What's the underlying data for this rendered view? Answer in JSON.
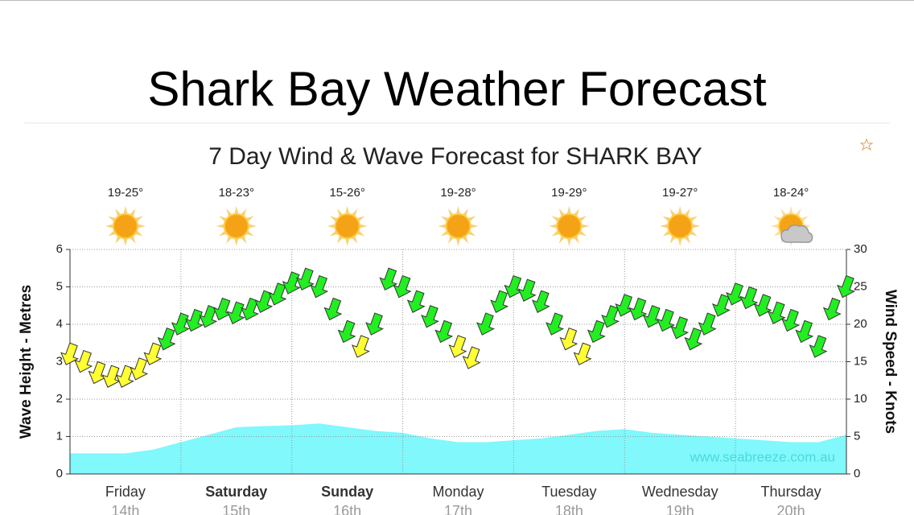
{
  "header": {
    "title": "Shark Bay Weather Forecast"
  },
  "chart_data": {
    "type": "wind-wave",
    "title": "7 Day Wind & Wave Forecast for SHARK BAY",
    "days": [
      {
        "name": "Friday",
        "date": "14th",
        "temp": "19-25°",
        "icon": "sun",
        "weekend": false
      },
      {
        "name": "Saturday",
        "date": "15th",
        "temp": "18-23°",
        "icon": "sun",
        "weekend": true
      },
      {
        "name": "Sunday",
        "date": "16th",
        "temp": "15-26°",
        "icon": "sun",
        "weekend": true
      },
      {
        "name": "Monday",
        "date": "17th",
        "temp": "19-28°",
        "icon": "sun",
        "weekend": false
      },
      {
        "name": "Tuesday",
        "date": "18th",
        "temp": "19-29°",
        "icon": "sun",
        "weekend": false
      },
      {
        "name": "Wednesday",
        "date": "19th",
        "temp": "19-27°",
        "icon": "sun",
        "weekend": false
      },
      {
        "name": "Thursday",
        "date": "20th",
        "temp": "18-24°",
        "icon": "cloud-sun",
        "weekend": false
      }
    ],
    "ylabel": "Wave Height - Metres",
    "y2label": "Wind Speed - Knots",
    "ylim": [
      0,
      6
    ],
    "yticks": [
      0,
      1,
      2,
      3,
      4,
      5,
      6
    ],
    "y2lim": [
      0,
      30
    ],
    "y2ticks": [
      0,
      5,
      10,
      15,
      20,
      25,
      30
    ],
    "grid": true,
    "watermark": "www.seabreeze.com.au",
    "wave": {
      "color": "#80f8fc",
      "values": [
        0.55,
        0.55,
        0.55,
        0.65,
        0.85,
        1.05,
        1.25,
        1.28,
        1.3,
        1.35,
        1.25,
        1.15,
        1.1,
        0.95,
        0.85,
        0.85,
        0.9,
        0.95,
        1.05,
        1.15,
        1.2,
        1.1,
        1.05,
        1.0,
        0.95,
        0.9,
        0.85,
        0.85,
        1.05
      ]
    },
    "wind": {
      "axis": "y2",
      "values": [
        16,
        15,
        13.5,
        13,
        13,
        14,
        16,
        18,
        20,
        20.5,
        21,
        22,
        21.5,
        22,
        23,
        24,
        25.5,
        26,
        25,
        22,
        19,
        17,
        20,
        26,
        25,
        23,
        21,
        19,
        17,
        15.5,
        20,
        23,
        25,
        24.5,
        23,
        20,
        18,
        16,
        19,
        21,
        22.5,
        22,
        21,
        20.5,
        19.5,
        18,
        20,
        22.5,
        24,
        23.5,
        22.5,
        21.5,
        20.5,
        19,
        17,
        22,
        25
      ],
      "colors": [
        "#ffff33",
        "#ffff33",
        "#ffff33",
        "#ffff33",
        "#ffff33",
        "#ffff33",
        "#ffff33",
        "#22ee22",
        "#22ee22",
        "#22ee22",
        "#22ee22",
        "#22ee22",
        "#22ee22",
        "#22ee22",
        "#22ee22",
        "#22ee22",
        "#22ee22",
        "#22ee22",
        "#22ee22",
        "#22ee22",
        "#22ee22",
        "#ffff33",
        "#22ee22",
        "#22ee22",
        "#22ee22",
        "#22ee22",
        "#22ee22",
        "#22ee22",
        "#ffff33",
        "#ffff33",
        "#22ee22",
        "#22ee22",
        "#22ee22",
        "#22ee22",
        "#22ee22",
        "#22ee22",
        "#ffff33",
        "#ffff33",
        "#22ee22",
        "#22ee22",
        "#22ee22",
        "#22ee22",
        "#22ee22",
        "#22ee22",
        "#22ee22",
        "#22ee22",
        "#22ee22",
        "#22ee22",
        "#22ee22",
        "#22ee22",
        "#22ee22",
        "#22ee22",
        "#22ee22",
        "#22ee22",
        "#22ee22",
        "#22ee22",
        "#22ee22"
      ]
    }
  }
}
